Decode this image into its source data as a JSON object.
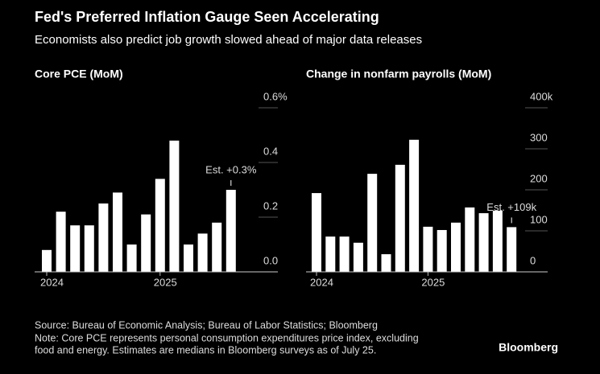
{
  "header": {
    "title": "Fed's Preferred Inflation Gauge Seen Accelerating",
    "subtitle": "Economists also predict job growth slowed ahead of major data releases"
  },
  "chart_data": [
    {
      "type": "bar",
      "title": "Core PCE (MoM)",
      "color": "#ffffff",
      "categories": [
        "2024",
        null,
        null,
        null,
        null,
        null,
        null,
        null,
        "2025",
        null,
        null,
        null,
        null,
        null
      ],
      "values": [
        0.08,
        0.22,
        0.17,
        0.17,
        0.25,
        0.29,
        0.1,
        0.21,
        0.34,
        0.48,
        0.1,
        0.14,
        0.18,
        0.3
      ],
      "ylim": [
        0,
        0.6
      ],
      "yticks": [
        {
          "value": 0,
          "label": "0.0"
        },
        0.2,
        0.4,
        {
          "value": 0.6,
          "label": "0.6%"
        }
      ],
      "annotation": "Est. +0.3%",
      "grid": true
    },
    {
      "type": "bar",
      "title": "Change in nonfarm payrolls (MoM)",
      "color": "#ffffff",
      "categories": [
        "2024",
        null,
        null,
        null,
        null,
        null,
        null,
        null,
        "2025",
        null,
        null,
        null,
        null,
        null,
        null
      ],
      "values": [
        192,
        86,
        86,
        71,
        239,
        43,
        261,
        322,
        110,
        102,
        120,
        157,
        143,
        149,
        109
      ],
      "ylim": [
        0,
        400
      ],
      "yticks": [
        0,
        100,
        200,
        300,
        {
          "value": 400,
          "label": "400k"
        }
      ],
      "annotation": "Est. +109k",
      "grid": true
    }
  ],
  "footer": {
    "source": "Source: Bureau of Economic Analysis; Bureau of Labor Statistics; Bloomberg",
    "note_line1": "Note: Core PCE represents personal consumption expenditures price index, excluding",
    "note_line2": "food and energy. Estimates are medians in Bloomberg surveys as of July 25.",
    "brand": "Bloomberg"
  }
}
